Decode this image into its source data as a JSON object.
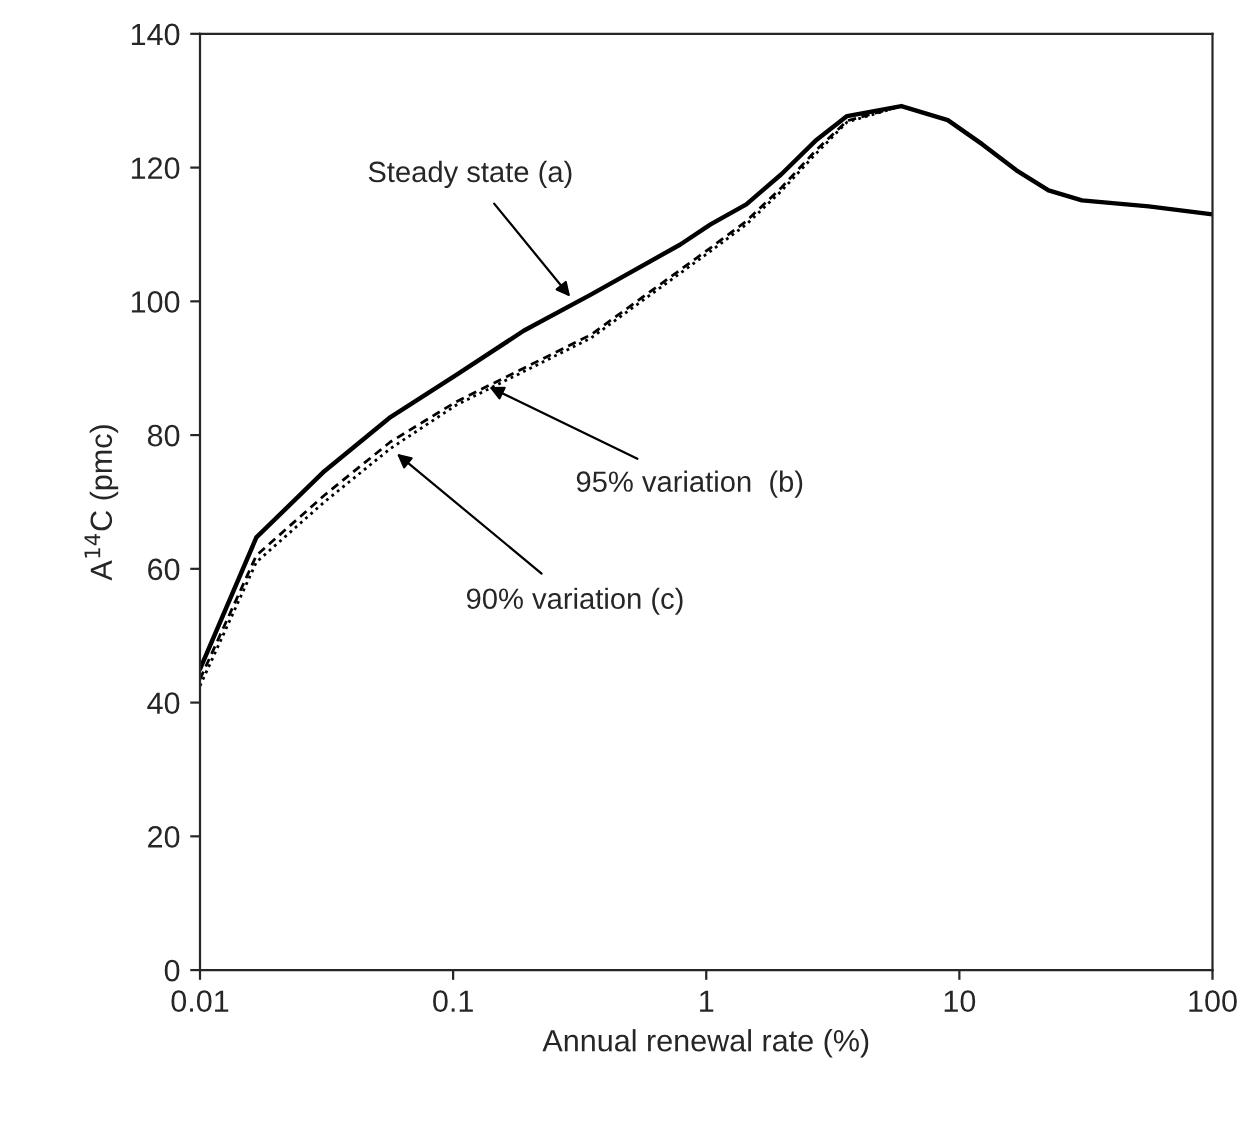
{
  "chart_data": {
    "type": "line",
    "xlabel": "Annual renewal rate (%)",
    "ylabel": "A$^{14}$C (pmc)",
    "log": "x",
    "xlim": [
      0.01,
      100
    ],
    "xticks": [
      0.01,
      0.1,
      1,
      10,
      100
    ],
    "ylim": [
      0,
      140
    ],
    "yticks": [
      0,
      20,
      40,
      60,
      80,
      100,
      120,
      140
    ],
    "grid": false,
    "marker": "none",
    "series": [
      {
        "color": "#000000",
        "line_style": "solid",
        "x": [
          0.01,
          0.0167,
          0.031,
          0.0566,
          0.103,
          0.19,
          0.35,
          0.79,
          1.04,
          1.44,
          1.98,
          2.7,
          3.6,
          5.9,
          9.0,
          12.3,
          16.8,
          22.5,
          30.5,
          56,
          100
        ],
        "values": [
          45,
          64.7,
          74.6,
          82.7,
          89,
          95.6,
          101,
          108.5,
          111.5,
          114.5,
          119,
          124,
          127.7,
          129.2,
          127.1,
          123.5,
          119.6,
          116.6,
          115.1,
          114.2,
          113
        ]
      },
      {
        "color": "#000000",
        "line_style": "dashed",
        "x": [
          0.01,
          0.0167,
          0.031,
          0.0566,
          0.103,
          0.19,
          0.35,
          1.04,
          1.44,
          1.98,
          2.7,
          3.6,
          5.9,
          9.0,
          12.3,
          16.8,
          22.5,
          30.5,
          56,
          100
        ],
        "values": [
          43.5,
          62,
          71,
          79,
          85,
          90,
          95,
          108,
          112,
          117,
          122.5,
          127,
          129.2,
          127.1,
          123.5,
          119.6,
          116.6,
          115.1,
          114.2,
          113
        ]
      },
      {
        "color": "#000000",
        "line_style": "dotted",
        "x": [
          0.01,
          0.0167,
          0.031,
          0.0566,
          0.103,
          0.19,
          0.35,
          1.04,
          1.44,
          1.98,
          2.7,
          3.6,
          5.9,
          9.0,
          12.3,
          16.8,
          22.5,
          30.5,
          56,
          100
        ],
        "values": [
          42.5,
          61,
          70,
          78,
          84.5,
          89.5,
          94.5,
          107.5,
          111.5,
          116.5,
          122,
          126.8,
          129.2,
          127.1,
          123.5,
          119.6,
          116.6,
          115.1,
          114.2,
          113
        ]
      }
    ],
    "annotations": [
      {
        "text": "Steady state (a)",
        "x": 0.29,
        "y": 100.7
      },
      {
        "text": "95% variation  (b)",
        "x": 0.139,
        "y": 87.2
      },
      {
        "text": "90% variation (c)",
        "x": 0.0566,
        "y": 78
      }
    ]
  }
}
